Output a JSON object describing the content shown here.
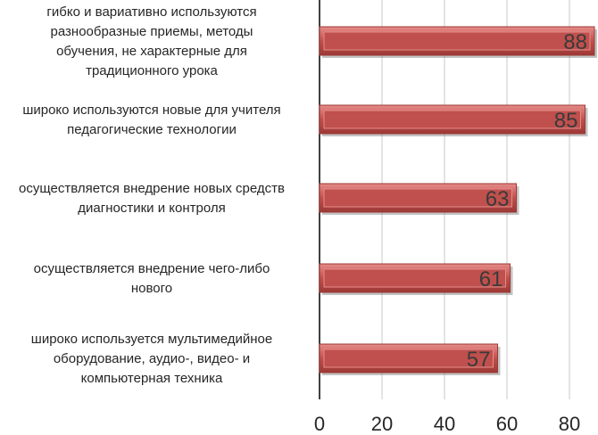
{
  "chart_data": {
    "type": "bar",
    "orientation": "horizontal",
    "categories": [
      "гибко и вариативно используются разнообразные приемы, методы обучения, не характерные для традиционного урока",
      "широко используются новые для учителя педагогические  технологии",
      "осуществляется внедрение новых средств диагностики и контроля",
      "осуществляется внедрение чего-либо нового",
      "широко используется мультимедийное оборудование, аудио-, видео- и компьютерная техника"
    ],
    "category_lines": [
      [
        "гибко и вариативно используются",
        "разнообразные приемы, методы",
        "обучения, не характерные для",
        "традиционного урока"
      ],
      [
        "широко используются новые для учителя",
        "педагогические  технологии"
      ],
      [
        "осуществляется внедрение новых средств",
        "диагностики и контроля"
      ],
      [
        "осуществляется внедрение чего-либо",
        "нового"
      ],
      [
        "широко используется мультимедийное",
        "оборудование, аудио-, видео- и",
        "компьютерная техника"
      ]
    ],
    "values": [
      88,
      85,
      63,
      61,
      57
    ],
    "data_labels": [
      "88",
      "85",
      "63",
      "61",
      "57"
    ],
    "xlim": [
      0,
      88
    ],
    "xticks": [
      0,
      20,
      40,
      60,
      80
    ],
    "xtick_labels": [
      "0",
      "20",
      "40",
      "60",
      "80"
    ],
    "grid": "vertical",
    "legend": "none",
    "colors": {
      "bar": "#c0504d",
      "bar_light": "#e58b88",
      "bar_dark": "#9c3936",
      "grid": "#c8c8c8",
      "axis": "#000000"
    }
  }
}
